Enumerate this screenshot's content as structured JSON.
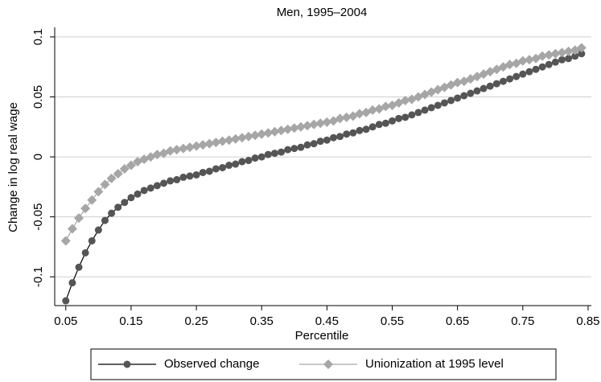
{
  "chart_data": {
    "type": "line",
    "title": "Men, 1995–2004",
    "xlabel": "Percentile",
    "ylabel": "Change in log real wage",
    "x": [
      0.05,
      0.06,
      0.07,
      0.08,
      0.09,
      0.1,
      0.11,
      0.12,
      0.13,
      0.14,
      0.15,
      0.16,
      0.17,
      0.18,
      0.19,
      0.2,
      0.21,
      0.22,
      0.23,
      0.24,
      0.25,
      0.26,
      0.27,
      0.28,
      0.29,
      0.3,
      0.31,
      0.32,
      0.33,
      0.34,
      0.35,
      0.36,
      0.37,
      0.38,
      0.39,
      0.4,
      0.41,
      0.42,
      0.43,
      0.44,
      0.45,
      0.46,
      0.47,
      0.48,
      0.49,
      0.5,
      0.51,
      0.52,
      0.53,
      0.54,
      0.55,
      0.56,
      0.57,
      0.58,
      0.59,
      0.6,
      0.61,
      0.62,
      0.63,
      0.64,
      0.65,
      0.66,
      0.67,
      0.68,
      0.69,
      0.7,
      0.71,
      0.72,
      0.73,
      0.74,
      0.75,
      0.76,
      0.77,
      0.78,
      0.79,
      0.8,
      0.81,
      0.82,
      0.83,
      0.84
    ],
    "series": [
      {
        "name": "Observed change",
        "color": "#555555",
        "marker": "circle",
        "values": [
          -0.12,
          -0.105,
          -0.092,
          -0.08,
          -0.07,
          -0.061,
          -0.053,
          -0.047,
          -0.042,
          -0.038,
          -0.034,
          -0.031,
          -0.028,
          -0.026,
          -0.024,
          -0.022,
          -0.02,
          -0.019,
          -0.017,
          -0.016,
          -0.015,
          -0.013,
          -0.012,
          -0.01,
          -0.009,
          -0.007,
          -0.006,
          -0.004,
          -0.003,
          -0.001,
          0.0,
          0.002,
          0.003,
          0.004,
          0.006,
          0.007,
          0.008,
          0.01,
          0.011,
          0.013,
          0.014,
          0.016,
          0.017,
          0.019,
          0.02,
          0.022,
          0.023,
          0.025,
          0.027,
          0.028,
          0.03,
          0.032,
          0.033,
          0.035,
          0.037,
          0.039,
          0.041,
          0.043,
          0.045,
          0.047,
          0.049,
          0.051,
          0.053,
          0.055,
          0.057,
          0.059,
          0.061,
          0.063,
          0.065,
          0.067,
          0.069,
          0.071,
          0.073,
          0.075,
          0.077,
          0.079,
          0.081,
          0.082,
          0.084,
          0.086
        ]
      },
      {
        "name": "Unionization at 1995 level",
        "color": "#a6a6a6",
        "marker": "diamond",
        "values": [
          -0.07,
          -0.06,
          -0.051,
          -0.043,
          -0.036,
          -0.029,
          -0.023,
          -0.018,
          -0.014,
          -0.01,
          -0.007,
          -0.004,
          -0.002,
          0.0,
          0.002,
          0.003,
          0.005,
          0.006,
          0.007,
          0.008,
          0.009,
          0.01,
          0.011,
          0.012,
          0.013,
          0.014,
          0.015,
          0.016,
          0.017,
          0.018,
          0.019,
          0.02,
          0.021,
          0.022,
          0.023,
          0.024,
          0.025,
          0.026,
          0.027,
          0.028,
          0.029,
          0.03,
          0.032,
          0.033,
          0.034,
          0.036,
          0.037,
          0.039,
          0.04,
          0.042,
          0.043,
          0.045,
          0.047,
          0.048,
          0.05,
          0.052,
          0.054,
          0.056,
          0.058,
          0.06,
          0.062,
          0.063,
          0.065,
          0.067,
          0.069,
          0.071,
          0.073,
          0.075,
          0.077,
          0.078,
          0.08,
          0.081,
          0.082,
          0.084,
          0.085,
          0.086,
          0.087,
          0.088,
          0.089,
          0.091
        ]
      }
    ],
    "xlim": [
      0.033,
      0.855
    ],
    "ylim": [
      -0.124,
      0.108
    ],
    "xticks": [
      0.05,
      0.15,
      0.25,
      0.35,
      0.45,
      0.55,
      0.65,
      0.75,
      0.85
    ],
    "yticks": [
      -0.1,
      -0.05,
      0,
      0.05,
      0.1
    ],
    "grid": true,
    "legend": "bottom"
  }
}
